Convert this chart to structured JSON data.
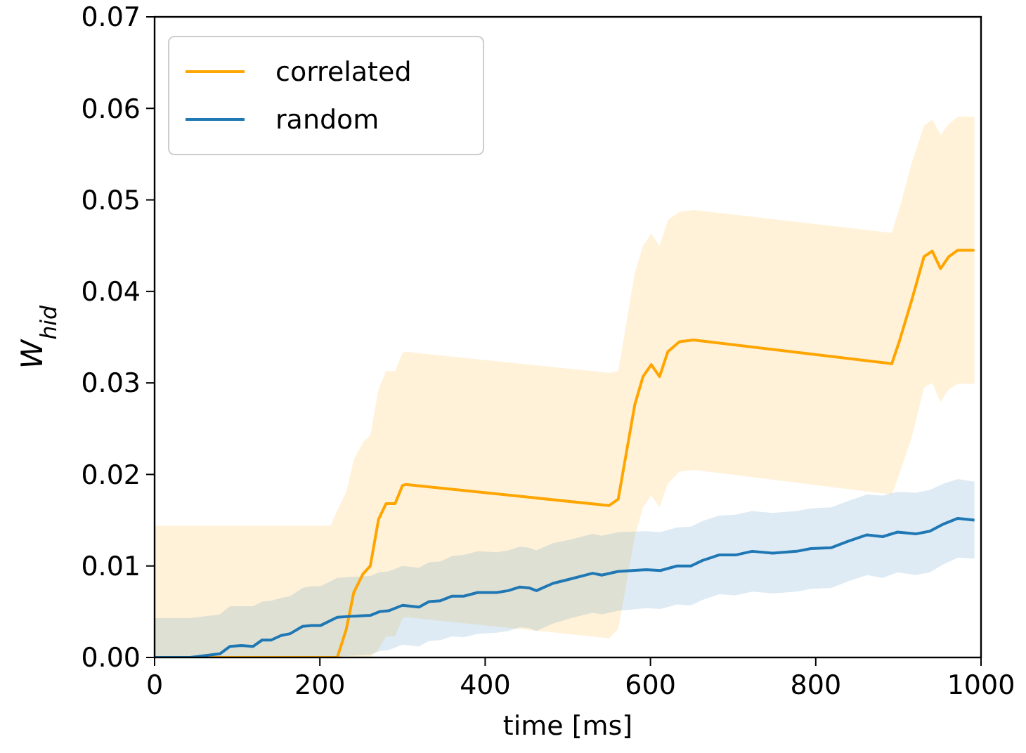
{
  "chart_data": {
    "type": "line",
    "xlabel": "time [ms]",
    "ylabel": "W$_{hid}$",
    "xlim": [
      0,
      1000
    ],
    "ylim": [
      0,
      0.07
    ],
    "xticks": [
      0,
      200,
      400,
      600,
      800,
      1000
    ],
    "yticks": [
      {
        "value": 0,
        "label": "0.00"
      },
      {
        "value": 0.01,
        "label": "0.01"
      },
      {
        "value": 0.02,
        "label": "0.02"
      },
      {
        "value": 0.03,
        "label": "0.03"
      },
      {
        "value": 0.04,
        "label": "0.04"
      },
      {
        "value": 0.05,
        "label": "0.05"
      },
      {
        "value": 0.06,
        "label": "0.06"
      },
      {
        "value": 0.07,
        "label": "0.07"
      }
    ],
    "legend": "top left",
    "grid": false,
    "series": [
      {
        "name": "correlated",
        "color": "#ffa500",
        "x": [
          0,
          213,
          221,
          232,
          241,
          252,
          261,
          271,
          280,
          291,
          300,
          304,
          550,
          561,
          581,
          591,
          601,
          611,
          621,
          635,
          652,
          892,
          901,
          916,
          931,
          941,
          951,
          961,
          972,
          992
        ],
        "values": [
          0,
          0,
          0,
          0.0031,
          0.0071,
          0.0091,
          0.01,
          0.0151,
          0.0168,
          0.0168,
          0.0188,
          0.0189,
          0.0166,
          0.0173,
          0.0276,
          0.0307,
          0.032,
          0.0307,
          0.0334,
          0.0345,
          0.0347,
          0.0321,
          0.0345,
          0.039,
          0.0438,
          0.0444,
          0.0425,
          0.0438,
          0.0445,
          0.0445
        ],
        "upper": [
          0.0144,
          0.0144,
          0.0161,
          0.0181,
          0.0216,
          0.0235,
          0.0243,
          0.0293,
          0.0313,
          0.0313,
          0.0333,
          0.0334,
          0.0311,
          0.0313,
          0.042,
          0.045,
          0.0463,
          0.045,
          0.0478,
          0.0487,
          0.0489,
          0.0464,
          0.049,
          0.054,
          0.0581,
          0.0588,
          0.0571,
          0.0583,
          0.0591,
          0.0591
        ],
        "lower": [
          0,
          0,
          0,
          0,
          0,
          0,
          0,
          0.0009,
          0.0023,
          0.0023,
          0.0043,
          0.0044,
          0.0021,
          0.0031,
          0.0132,
          0.0164,
          0.0177,
          0.0164,
          0.019,
          0.0203,
          0.0205,
          0.0178,
          0.02,
          0.024,
          0.0295,
          0.03,
          0.0279,
          0.0293,
          0.0299,
          0.0299
        ]
      },
      {
        "name": "random",
        "color": "#1f77b4",
        "x": [
          0,
          43,
          79,
          91,
          105,
          119,
          130,
          141,
          153,
          164,
          179,
          190,
          201,
          221,
          238,
          261,
          272,
          283,
          300,
          320,
          332,
          346,
          360,
          374,
          391,
          414,
          428,
          442,
          453,
          462,
          482,
          504,
          530,
          541,
          561,
          595,
          612,
          632,
          649,
          663,
          683,
          703,
          723,
          748,
          777,
          794,
          819,
          839,
          862,
          881,
          899,
          921,
          938,
          955,
          972,
          992
        ],
        "values": [
          0,
          0,
          0.0004,
          0.0012,
          0.0013,
          0.0012,
          0.0019,
          0.0019,
          0.0024,
          0.0026,
          0.0034,
          0.0035,
          0.0035,
          0.0044,
          0.0045,
          0.0046,
          0.005,
          0.0051,
          0.0057,
          0.0055,
          0.0061,
          0.0062,
          0.0067,
          0.0067,
          0.0071,
          0.0071,
          0.0073,
          0.0077,
          0.0076,
          0.0073,
          0.0081,
          0.0086,
          0.0092,
          0.009,
          0.0094,
          0.0096,
          0.0095,
          0.01,
          0.01,
          0.0106,
          0.0112,
          0.0112,
          0.0116,
          0.0114,
          0.0116,
          0.0119,
          0.012,
          0.0127,
          0.0134,
          0.0132,
          0.0137,
          0.0135,
          0.0138,
          0.0146,
          0.0152,
          0.015
        ],
        "upper": [
          0.0043,
          0.0043,
          0.0047,
          0.0056,
          0.0056,
          0.0056,
          0.0061,
          0.0062,
          0.0065,
          0.0067,
          0.0076,
          0.0078,
          0.0078,
          0.0087,
          0.0088,
          0.0089,
          0.0093,
          0.0094,
          0.01,
          0.0098,
          0.0104,
          0.0105,
          0.0111,
          0.0112,
          0.0116,
          0.0115,
          0.0117,
          0.0121,
          0.012,
          0.0117,
          0.0125,
          0.0129,
          0.0135,
          0.0133,
          0.0137,
          0.0138,
          0.0137,
          0.0142,
          0.0143,
          0.0149,
          0.0155,
          0.0156,
          0.016,
          0.0158,
          0.016,
          0.0163,
          0.0164,
          0.0171,
          0.0178,
          0.0177,
          0.0181,
          0.018,
          0.0183,
          0.019,
          0.0195,
          0.0192
        ],
        "lower": [
          0,
          0,
          0,
          0,
          0,
          0,
          0,
          0,
          0,
          0,
          0,
          0,
          0,
          0.0001,
          0.0002,
          0.0003,
          0.0007,
          0.0008,
          0.0014,
          0.0012,
          0.0018,
          0.0019,
          0.0023,
          0.0022,
          0.0026,
          0.0027,
          0.0029,
          0.0033,
          0.0032,
          0.0029,
          0.0037,
          0.0043,
          0.0049,
          0.0047,
          0.0051,
          0.0054,
          0.0053,
          0.0058,
          0.0057,
          0.0063,
          0.0069,
          0.0068,
          0.0072,
          0.007,
          0.0072,
          0.0075,
          0.0076,
          0.0083,
          0.009,
          0.0087,
          0.0093,
          0.009,
          0.0093,
          0.0102,
          0.0109,
          0.0108
        ]
      }
    ]
  }
}
